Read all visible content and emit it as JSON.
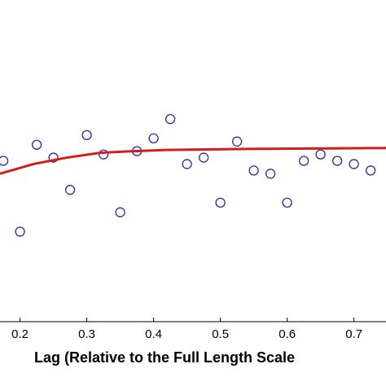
{
  "chart_data": {
    "type": "scatter",
    "xlabel": "Lag (Relative to the Full Length Scale",
    "xlim": [
      0.17,
      0.748
    ],
    "xticks": [
      0.2,
      0.3,
      0.4,
      0.5,
      0.6,
      0.7
    ],
    "ylim": [
      0,
      1
    ],
    "series": [
      {
        "type": "scatter",
        "color": "#2a2a9e",
        "x": [
          0.175,
          0.2,
          0.225,
          0.25,
          0.275,
          0.3,
          0.325,
          0.35,
          0.375,
          0.4,
          0.425,
          0.45,
          0.475,
          0.5,
          0.525,
          0.55,
          0.575,
          0.6,
          0.625,
          0.65,
          0.675,
          0.7,
          0.725
        ],
        "values": [
          0.5,
          0.28,
          0.55,
          0.51,
          0.41,
          0.58,
          0.52,
          0.34,
          0.53,
          0.57,
          0.63,
          0.49,
          0.51,
          0.37,
          0.56,
          0.47,
          0.46,
          0.37,
          0.5,
          0.52,
          0.5,
          0.49,
          0.47
        ]
      },
      {
        "type": "line",
        "color": "#d41c1c",
        "x": [
          0.17,
          0.22,
          0.27,
          0.32,
          0.37,
          0.42,
          0.54,
          0.748
        ],
        "values": [
          0.46,
          0.49,
          0.51,
          0.525,
          0.53,
          0.534,
          0.537,
          0.54
        ]
      }
    ]
  }
}
